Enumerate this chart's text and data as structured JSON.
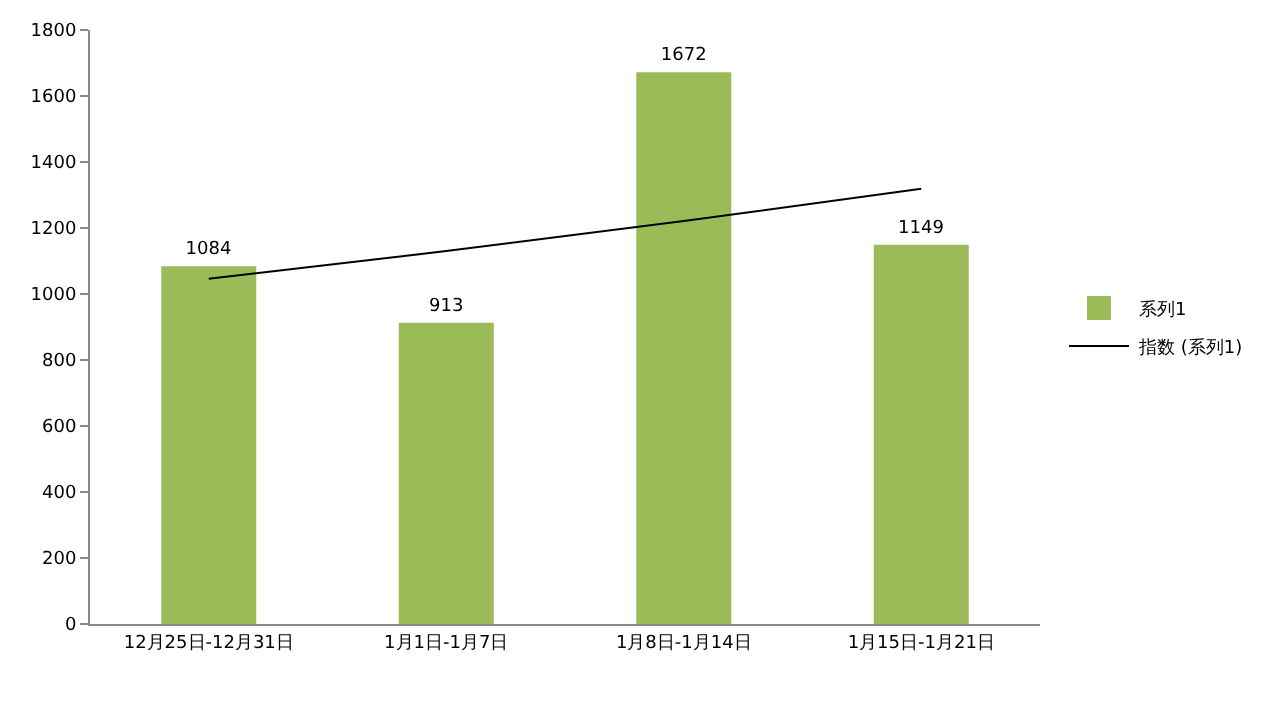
{
  "chart_data": {
    "type": "bar",
    "categories": [
      "12月25日-12月31日",
      "1月1日-1月7日",
      "1月8日-1月14日",
      "1月15日-1月21日"
    ],
    "series": [
      {
        "name": "系列1",
        "color": "#9bbb59",
        "values": [
          1084,
          913,
          1672,
          1149
        ],
        "value_labels": [
          "1084",
          "913",
          "1672",
          "1149"
        ]
      },
      {
        "name": "指数 (系列1)",
        "type": "line",
        "color": "#000000",
        "values": [
          1046,
          1130,
          1221,
          1319
        ]
      }
    ],
    "ylim": [
      0,
      1800
    ],
    "yticks": [
      0,
      200,
      400,
      600,
      800,
      1000,
      1200,
      1400,
      1600,
      1800
    ],
    "grid": false,
    "legend": "right",
    "marker": "none",
    "line_style": "solid"
  }
}
